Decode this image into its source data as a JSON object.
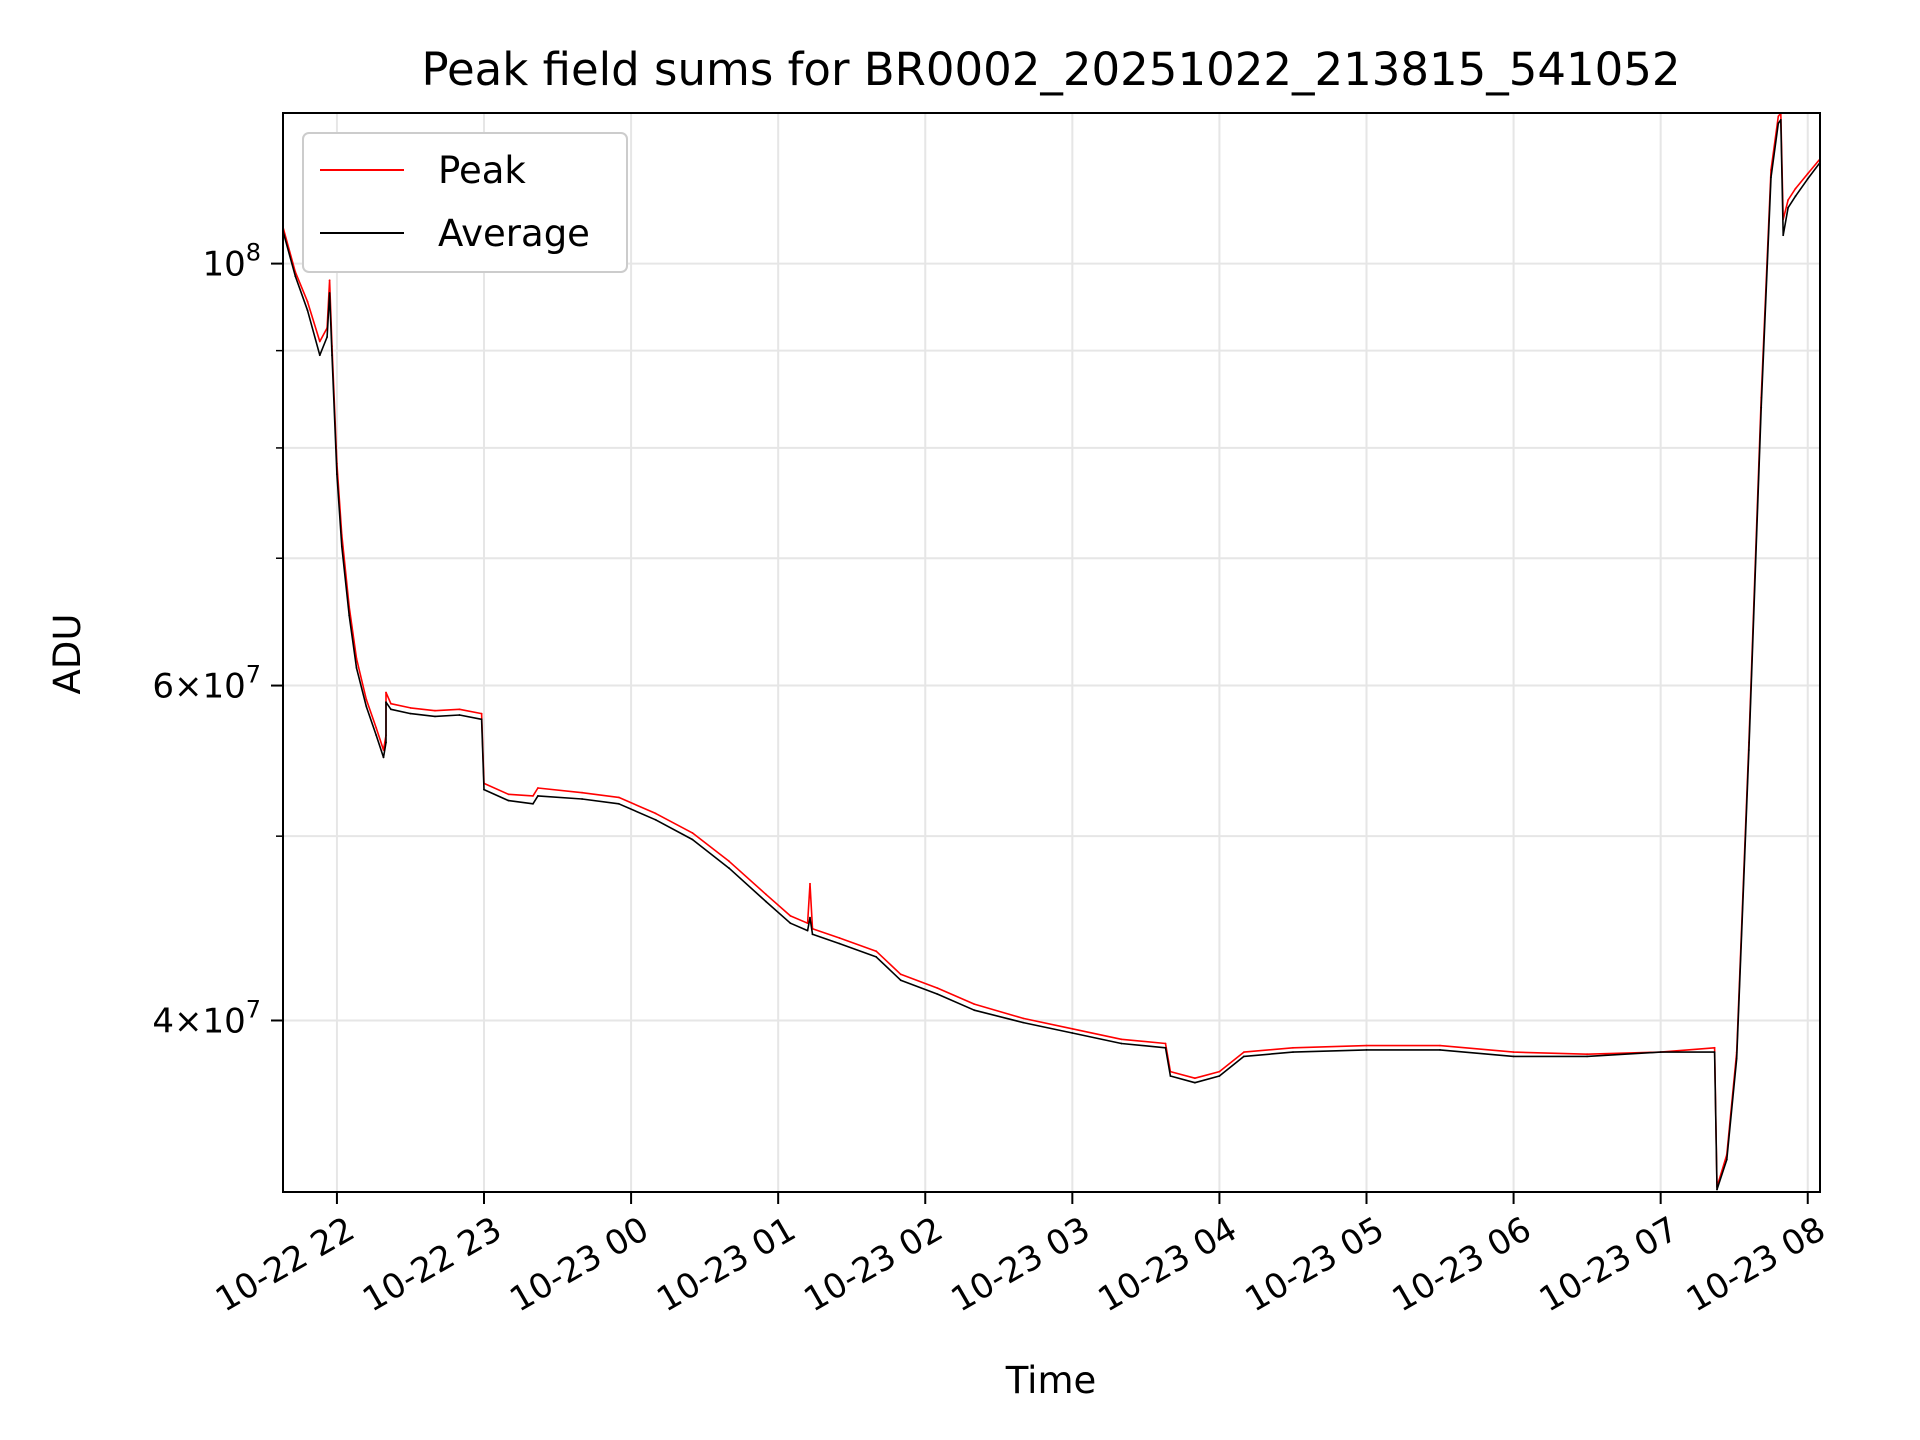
{
  "chart_data": {
    "type": "line",
    "title": "Peak field sums for BR0002_20251022_213815_541052",
    "xlabel": "Time",
    "ylabel": "ADU",
    "yscale": "log",
    "ylim": [
      32500000,
      120000000
    ],
    "xlim": [
      "2025-10-22 21:38",
      "2025-10-23 08:05"
    ],
    "grid": true,
    "legend": "upper left",
    "x_ticks": [
      {
        "t": "2025-10-22 22:00",
        "label": "10-22 22"
      },
      {
        "t": "2025-10-22 23:00",
        "label": "10-22 23"
      },
      {
        "t": "2025-10-23 00:00",
        "label": "10-23 00"
      },
      {
        "t": "2025-10-23 01:00",
        "label": "10-23 01"
      },
      {
        "t": "2025-10-23 02:00",
        "label": "10-23 02"
      },
      {
        "t": "2025-10-23 03:00",
        "label": "10-23 03"
      },
      {
        "t": "2025-10-23 04:00",
        "label": "10-23 04"
      },
      {
        "t": "2025-10-23 05:00",
        "label": "10-23 05"
      },
      {
        "t": "2025-10-23 06:00",
        "label": "10-23 06"
      },
      {
        "t": "2025-10-23 07:00",
        "label": "10-23 07"
      },
      {
        "t": "2025-10-23 08:00",
        "label": "10-23 08"
      }
    ],
    "y_ticks_major": [
      {
        "v": 40000000,
        "mant": "4",
        "exp": "7"
      },
      {
        "v": 60000000,
        "mant": "6",
        "exp": "7"
      },
      {
        "v": 100000000,
        "mant": "",
        "exp": "8"
      }
    ],
    "y_ticks_minor": [
      50000000,
      70000000,
      80000000,
      90000000
    ],
    "series": [
      {
        "name": "Peak",
        "color": "#ff0000",
        "points": [
          [
            "2025-10-22 21:38",
            104500000
          ],
          [
            "2025-10-22 21:43",
            99000000
          ],
          [
            "2025-10-22 21:48",
            95500000
          ],
          [
            "2025-10-22 21:53",
            91000000
          ],
          [
            "2025-10-22 21:56",
            92500000
          ],
          [
            "2025-10-22 21:57",
            98000000
          ],
          [
            "2025-10-22 21:58",
            90500000
          ],
          [
            "2025-10-22 22:00",
            78500000
          ],
          [
            "2025-10-22 22:02",
            72000000
          ],
          [
            "2025-10-22 22:05",
            66000000
          ],
          [
            "2025-10-22 22:08",
            62000000
          ],
          [
            "2025-10-22 22:12",
            59000000
          ],
          [
            "2025-10-22 22:16",
            57000000
          ],
          [
            "2025-10-22 22:19",
            55500000
          ],
          [
            "2025-10-22 22:20",
            56500000
          ],
          [
            "2025-10-22 22:20",
            59500000
          ],
          [
            "2025-10-22 22:22",
            58700000
          ],
          [
            "2025-10-22 22:30",
            58400000
          ],
          [
            "2025-10-22 22:40",
            58200000
          ],
          [
            "2025-10-22 22:50",
            58300000
          ],
          [
            "2025-10-22 22:59",
            58000000
          ],
          [
            "2025-10-22 23:00",
            53300000
          ],
          [
            "2025-10-22 23:10",
            52600000
          ],
          [
            "2025-10-22 23:20",
            52500000
          ],
          [
            "2025-10-22 23:22",
            53000000
          ],
          [
            "2025-10-22 23:40",
            52700000
          ],
          [
            "2025-10-22 23:55",
            52400000
          ],
          [
            "2025-10-23 00:10",
            51400000
          ],
          [
            "2025-10-23 00:25",
            50200000
          ],
          [
            "2025-10-23 00:40",
            48500000
          ],
          [
            "2025-10-23 00:55",
            46600000
          ],
          [
            "2025-10-23 01:05",
            45400000
          ],
          [
            "2025-10-23 01:12",
            45000000
          ],
          [
            "2025-10-23 01:13",
            47200000
          ],
          [
            "2025-10-23 01:14",
            44700000
          ],
          [
            "2025-10-23 01:25",
            44200000
          ],
          [
            "2025-10-23 01:40",
            43500000
          ],
          [
            "2025-10-23 01:50",
            42300000
          ],
          [
            "2025-10-23 02:05",
            41600000
          ],
          [
            "2025-10-23 02:20",
            40800000
          ],
          [
            "2025-10-23 02:40",
            40100000
          ],
          [
            "2025-10-23 03:00",
            39600000
          ],
          [
            "2025-10-23 03:20",
            39100000
          ],
          [
            "2025-10-23 03:38",
            38900000
          ],
          [
            "2025-10-23 03:40",
            37600000
          ],
          [
            "2025-10-23 03:50",
            37300000
          ],
          [
            "2025-10-23 04:00",
            37600000
          ],
          [
            "2025-10-23 04:10",
            38500000
          ],
          [
            "2025-10-23 04:30",
            38700000
          ],
          [
            "2025-10-23 05:00",
            38800000
          ],
          [
            "2025-10-23 05:30",
            38800000
          ],
          [
            "2025-10-23 06:00",
            38500000
          ],
          [
            "2025-10-23 06:30",
            38400000
          ],
          [
            "2025-10-23 07:00",
            38500000
          ],
          [
            "2025-10-23 07:22",
            38700000
          ],
          [
            "2025-10-23 07:23",
            32700000
          ],
          [
            "2025-10-23 07:27",
            34000000
          ],
          [
            "2025-10-23 07:31",
            38500000
          ],
          [
            "2025-10-23 07:36",
            56000000
          ],
          [
            "2025-10-23 07:41",
            85000000
          ],
          [
            "2025-10-23 07:45",
            112000000
          ],
          [
            "2025-10-23 07:48",
            119500000
          ],
          [
            "2025-10-23 07:49",
            120000000
          ],
          [
            "2025-10-23 07:50",
            105500000
          ],
          [
            "2025-10-23 07:52",
            108000000
          ],
          [
            "2025-10-23 07:55",
            109500000
          ],
          [
            "2025-10-23 08:00",
            111500000
          ],
          [
            "2025-10-23 08:05",
            113500000
          ]
        ]
      },
      {
        "name": "Average",
        "color": "#000000",
        "points": [
          [
            "2025-10-22 21:38",
            104000000
          ],
          [
            "2025-10-22 21:43",
            98500000
          ],
          [
            "2025-10-22 21:48",
            94500000
          ],
          [
            "2025-10-22 21:53",
            89500000
          ],
          [
            "2025-10-22 21:56",
            91500000
          ],
          [
            "2025-10-22 21:57",
            96500000
          ],
          [
            "2025-10-22 21:58",
            89500000
          ],
          [
            "2025-10-22 22:00",
            77500000
          ],
          [
            "2025-10-22 22:02",
            71000000
          ],
          [
            "2025-10-22 22:05",
            65300000
          ],
          [
            "2025-10-22 22:08",
            61300000
          ],
          [
            "2025-10-22 22:12",
            58500000
          ],
          [
            "2025-10-22 22:16",
            56500000
          ],
          [
            "2025-10-22 22:19",
            55000000
          ],
          [
            "2025-10-22 22:20",
            56000000
          ],
          [
            "2025-10-22 22:20",
            58800000
          ],
          [
            "2025-10-22 22:22",
            58300000
          ],
          [
            "2025-10-22 22:30",
            58000000
          ],
          [
            "2025-10-22 22:40",
            57800000
          ],
          [
            "2025-10-22 22:50",
            57900000
          ],
          [
            "2025-10-22 22:59",
            57600000
          ],
          [
            "2025-10-22 23:00",
            52900000
          ],
          [
            "2025-10-22 23:10",
            52200000
          ],
          [
            "2025-10-22 23:20",
            52000000
          ],
          [
            "2025-10-22 23:22",
            52500000
          ],
          [
            "2025-10-22 23:40",
            52300000
          ],
          [
            "2025-10-22 23:55",
            52000000
          ],
          [
            "2025-10-23 00:10",
            51000000
          ],
          [
            "2025-10-23 00:25",
            49800000
          ],
          [
            "2025-10-23 00:40",
            48100000
          ],
          [
            "2025-10-23 00:55",
            46200000
          ],
          [
            "2025-10-23 01:05",
            45000000
          ],
          [
            "2025-10-23 01:12",
            44600000
          ],
          [
            "2025-10-23 01:13",
            45300000
          ],
          [
            "2025-10-23 01:14",
            44400000
          ],
          [
            "2025-10-23 01:25",
            43900000
          ],
          [
            "2025-10-23 01:40",
            43200000
          ],
          [
            "2025-10-23 01:50",
            42000000
          ],
          [
            "2025-10-23 02:05",
            41300000
          ],
          [
            "2025-10-23 02:20",
            40500000
          ],
          [
            "2025-10-23 02:40",
            39900000
          ],
          [
            "2025-10-23 03:00",
            39400000
          ],
          [
            "2025-10-23 03:20",
            38900000
          ],
          [
            "2025-10-23 03:38",
            38700000
          ],
          [
            "2025-10-23 03:40",
            37400000
          ],
          [
            "2025-10-23 03:50",
            37100000
          ],
          [
            "2025-10-23 04:00",
            37400000
          ],
          [
            "2025-10-23 04:10",
            38300000
          ],
          [
            "2025-10-23 04:30",
            38500000
          ],
          [
            "2025-10-23 05:00",
            38600000
          ],
          [
            "2025-10-23 05:30",
            38600000
          ],
          [
            "2025-10-23 06:00",
            38300000
          ],
          [
            "2025-10-23 06:30",
            38300000
          ],
          [
            "2025-10-23 07:00",
            38500000
          ],
          [
            "2025-10-23 07:22",
            38500000
          ],
          [
            "2025-10-23 07:23",
            32600000
          ],
          [
            "2025-10-23 07:27",
            33800000
          ],
          [
            "2025-10-23 07:31",
            38200000
          ],
          [
            "2025-10-23 07:36",
            55500000
          ],
          [
            "2025-10-23 07:41",
            84000000
          ],
          [
            "2025-10-23 07:45",
            111000000
          ],
          [
            "2025-10-23 07:48",
            118500000
          ],
          [
            "2025-10-23 07:49",
            119000000
          ],
          [
            "2025-10-23 07:50",
            103500000
          ],
          [
            "2025-10-23 07:52",
            107000000
          ],
          [
            "2025-10-23 07:55",
            108500000
          ],
          [
            "2025-10-23 08:00",
            110800000
          ],
          [
            "2025-10-23 08:05",
            113000000
          ]
        ]
      }
    ]
  }
}
